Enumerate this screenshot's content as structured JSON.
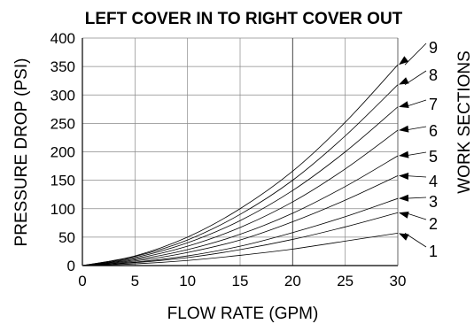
{
  "chart_data": {
    "type": "line",
    "title": "LEFT COVER IN TO RIGHT COVER OUT",
    "xlabel": "FLOW RATE (GPM)",
    "ylabel": "PRESSURE DROP (PSI)",
    "right_label": "WORK SECTIONS",
    "xlim": [
      0,
      30
    ],
    "ylim": [
      0,
      400
    ],
    "xticks": [
      0,
      5,
      10,
      15,
      20,
      25,
      30
    ],
    "yticks": [
      0,
      50,
      100,
      150,
      200,
      250,
      300,
      350,
      400
    ],
    "grid": true,
    "x": [
      0,
      5,
      10,
      15,
      20,
      25,
      30
    ],
    "series": [
      {
        "name": "1",
        "values": [
          0,
          3,
          9,
          18,
          29,
          43,
          57
        ]
      },
      {
        "name": "2",
        "values": [
          0,
          5,
          14,
          28,
          46,
          68,
          93
        ]
      },
      {
        "name": "3",
        "values": [
          0,
          6,
          17,
          34,
          58,
          86,
          118
        ]
      },
      {
        "name": "4",
        "values": [
          0,
          8,
          23,
          45,
          77,
          115,
          158
        ]
      },
      {
        "name": "5",
        "values": [
          0,
          10,
          28,
          55,
          92,
          139,
          193
        ]
      },
      {
        "name": "6",
        "values": [
          0,
          12,
          34,
          67,
          112,
          170,
          238
        ]
      },
      {
        "name": "7",
        "values": [
          0,
          14,
          40,
          79,
          132,
          200,
          279
        ]
      },
      {
        "name": "8",
        "values": [
          0,
          16,
          45,
          90,
          150,
          228,
          318
        ]
      },
      {
        "name": "9",
        "values": [
          0,
          17,
          50,
          100,
          166,
          252,
          353
        ]
      }
    ]
  }
}
